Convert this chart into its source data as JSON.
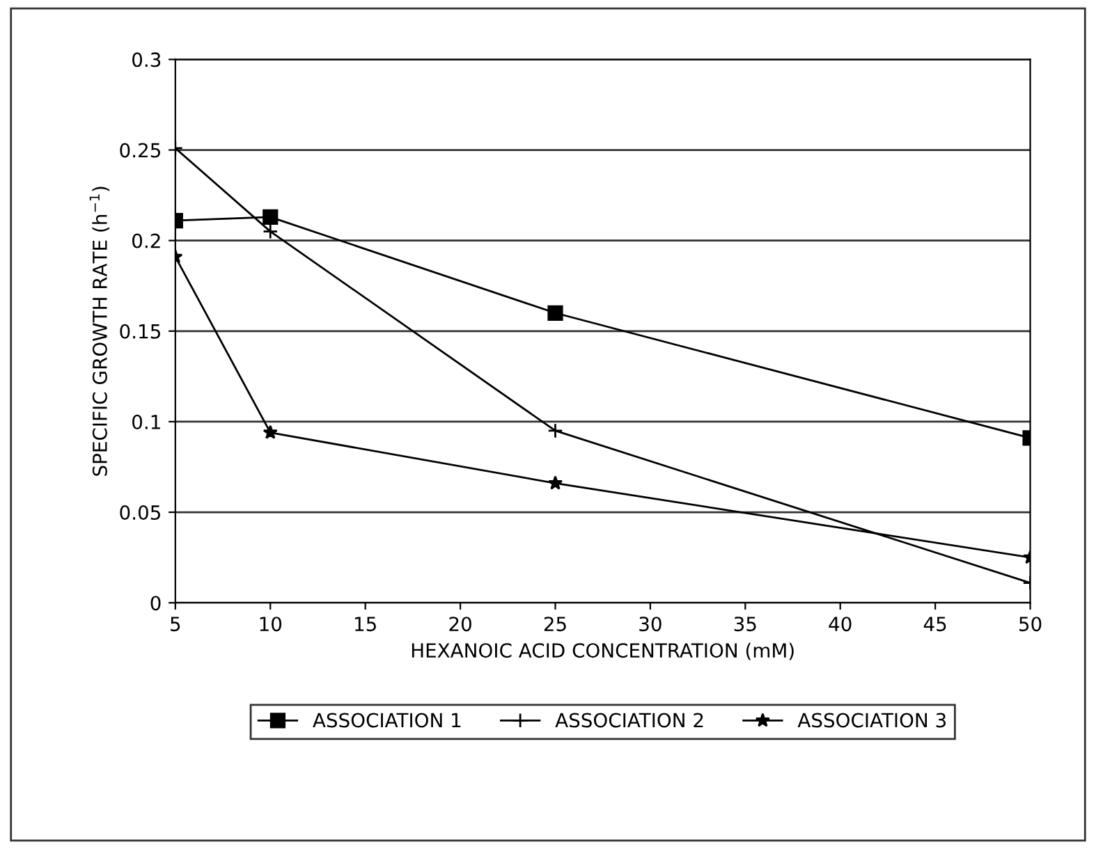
{
  "chart_data": {
    "type": "line",
    "xlabel": "HEXANOIC ACID CONCENTRATION (mM)",
    "ylabel": "SPECIFIC GROWTH RATE (h$^{−1}$)",
    "x": [
      5,
      10,
      25,
      50
    ],
    "series": [
      {
        "name": "ASSOCIATION 1",
        "color": "#000000",
        "marker": "square",
        "values": [
          0.211,
          0.213,
          0.16,
          0.091
        ]
      },
      {
        "name": "ASSOCIATION 2",
        "color": "#000000",
        "marker": "cross",
        "values": [
          0.251,
          0.205,
          0.095,
          0.011
        ]
      },
      {
        "name": "ASSOCIATION 3",
        "color": "#000000",
        "marker": "star",
        "values": [
          0.191,
          0.094,
          0.066,
          0.025
        ]
      }
    ],
    "xlim": [
      5,
      50
    ],
    "xticks": [
      5,
      10,
      15,
      20,
      25,
      30,
      35,
      40,
      45,
      50
    ],
    "ylim": [
      0,
      0.3
    ],
    "yticks": [
      0,
      0.05,
      0.1,
      0.15,
      0.2,
      0.25,
      0.3
    ],
    "grid": "y",
    "legend": "bottom",
    "line_style": "solid"
  }
}
